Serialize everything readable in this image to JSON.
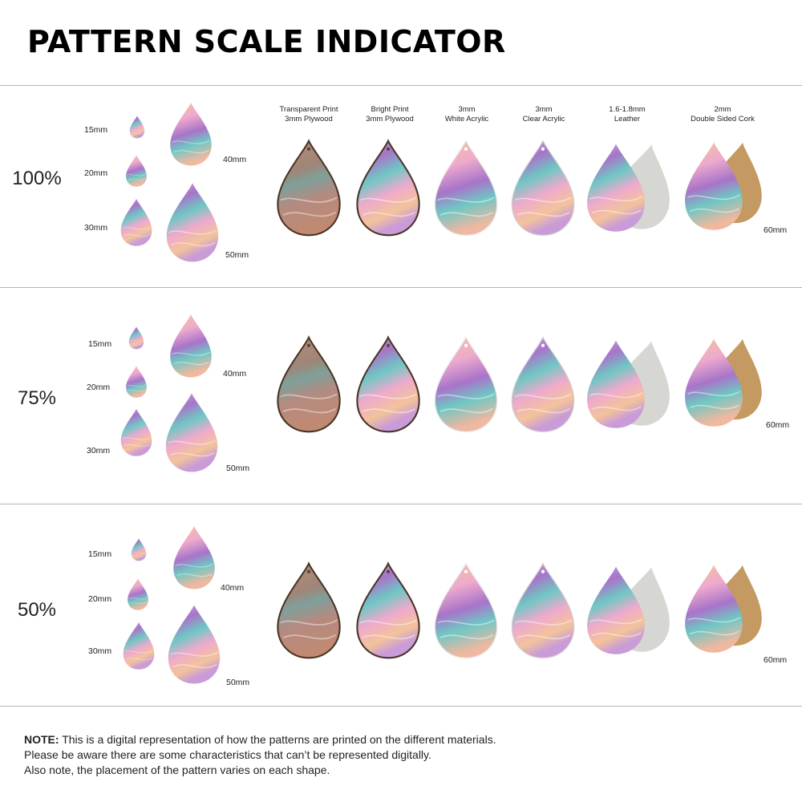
{
  "title": "PATTERN SCALE INDICATOR",
  "materials": [
    {
      "line1": "Transparent Print",
      "line2": "3mm Plywood"
    },
    {
      "line1": "Bright Print",
      "line2": "3mm Plywood"
    },
    {
      "line1": "3mm",
      "line2": "White Acrylic"
    },
    {
      "line1": "3mm",
      "line2": "Clear Acrylic"
    },
    {
      "line1": "1.6-1.8mm",
      "line2": "Leather"
    },
    {
      "line1": "2mm",
      "line2": "Double Sided Cork"
    }
  ],
  "sections": [
    {
      "scale": "100%",
      "sizes": {
        "s15": "15mm",
        "s20": "20mm",
        "s30": "30mm",
        "s40": "40mm",
        "s50": "50mm",
        "s60": "60mm"
      }
    },
    {
      "scale": "75%",
      "sizes": {
        "s15": "15mm",
        "s20": "20mm",
        "s30": "30mm",
        "s40": "40mm",
        "s50": "50mm",
        "s60": "60mm"
      }
    },
    {
      "scale": "50%",
      "sizes": {
        "s15": "15mm",
        "s20": "20mm",
        "s30": "30mm",
        "s40": "40mm",
        "s50": "50mm",
        "s60": "60mm"
      }
    }
  ],
  "colors": {
    "purple": "#a874c9",
    "pink": "#eeaacd",
    "peach": "#f3c39a",
    "teal": "#6fc7c4",
    "lavender": "#c9aee6",
    "wood": "#9c7a62",
    "cork": "#c49a62",
    "suede": "#d6d6d2"
  },
  "note": {
    "label": "NOTE:",
    "line1": "This is a digital representation of how the patterns are printed on the different materials.",
    "line2": "Please be aware there are some characteristics that can’t be represented digitally.",
    "line3": "Also note, the placement of the pattern varies on each shape."
  }
}
